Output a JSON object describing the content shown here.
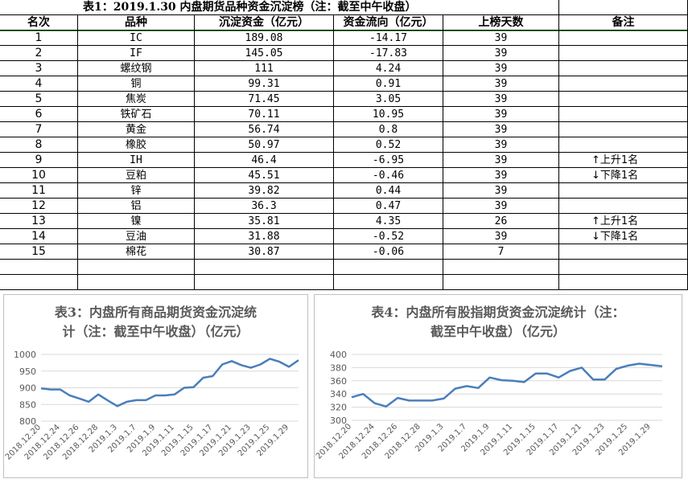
{
  "table": {
    "title": "表1：2019.1.30 内盘期货品种资金沉淀榜（注：截至中午收盘）",
    "headers": [
      "名次",
      "品种",
      "沉淀资金（亿元）",
      "资金流向（亿元）",
      "上榜天数",
      "备注"
    ],
    "rows": [
      {
        "rank": "1",
        "name": "IC",
        "capital": "189.08",
        "flow": "-14.17",
        "days": "39",
        "note": ""
      },
      {
        "rank": "2",
        "name": "IF",
        "capital": "145.05",
        "flow": "-17.83",
        "days": "39",
        "note": ""
      },
      {
        "rank": "3",
        "name": "螺纹钢",
        "capital": "111",
        "flow": "4.24",
        "days": "39",
        "note": ""
      },
      {
        "rank": "4",
        "name": "铜",
        "capital": "99.31",
        "flow": "0.91",
        "days": "39",
        "note": ""
      },
      {
        "rank": "5",
        "name": "焦炭",
        "capital": "71.45",
        "flow": "3.05",
        "days": "39",
        "note": ""
      },
      {
        "rank": "6",
        "name": "铁矿石",
        "capital": "70.11",
        "flow": "10.95",
        "days": "39",
        "note": ""
      },
      {
        "rank": "7",
        "name": "黄金",
        "capital": "56.74",
        "flow": "0.8",
        "days": "39",
        "note": ""
      },
      {
        "rank": "8",
        "name": "橡胶",
        "capital": "50.97",
        "flow": "0.52",
        "days": "39",
        "note": ""
      },
      {
        "rank": "9",
        "name": "IH",
        "capital": "46.4",
        "flow": "-6.95",
        "days": "39",
        "note": "↑上升1名"
      },
      {
        "rank": "10",
        "name": "豆粕",
        "capital": "45.51",
        "flow": "-0.46",
        "days": "39",
        "note": "↓下降1名"
      },
      {
        "rank": "11",
        "name": "锌",
        "capital": "39.82",
        "flow": "0.44",
        "days": "39",
        "note": ""
      },
      {
        "rank": "12",
        "name": "铝",
        "capital": "36.3",
        "flow": "0.47",
        "days": "39",
        "note": ""
      },
      {
        "rank": "13",
        "name": "镍",
        "capital": "35.81",
        "flow": "4.35",
        "days": "26",
        "note": "↑上升1名"
      },
      {
        "rank": "14",
        "name": "豆油",
        "capital": "31.88",
        "flow": "-0.52",
        "days": "39",
        "note": "↓下降1名"
      },
      {
        "rank": "15",
        "name": "棉花",
        "capital": "30.87",
        "flow": "-0.06",
        "days": "7",
        "note": ""
      }
    ]
  },
  "chart_data": [
    {
      "type": "line",
      "title_line1": "表3：内盘所有商品期货资金沉淀统",
      "title_line2": "计（注：截至中午收盘）（亿元）",
      "ylim": [
        800,
        1000
      ],
      "yticks": [
        800,
        850,
        900,
        950,
        1000
      ],
      "xtick_labels": [
        "2018.12.20",
        "2018.12.24",
        "2018.12.26",
        "2018.12.28",
        "2019.1.3",
        "2019.1.7",
        "2019.1.9",
        "2019.1.11",
        "2019.1.15",
        "2019.1.17",
        "2019.1.21",
        "2019.1.23",
        "2019.1.25",
        "2019.1.29"
      ],
      "values": [
        898,
        895,
        895,
        877,
        868,
        858,
        880,
        862,
        845,
        858,
        863,
        863,
        877,
        877,
        880,
        900,
        902,
        930,
        935,
        970,
        980,
        968,
        960,
        970,
        987,
        978,
        963,
        983
      ],
      "color": "#4a7ebb"
    },
    {
      "type": "line",
      "title_line1": "表4：内盘所有股指期货资金沉淀统计（注：",
      "title_line2": "截至中午收盘）（亿元）",
      "ylim": [
        300,
        400
      ],
      "yticks": [
        300,
        320,
        340,
        360,
        380,
        400
      ],
      "xtick_labels": [
        "2018.12.20",
        "2018.12.24",
        "2018.12.26",
        "2018.12.28",
        "2019.1.3",
        "2019.1.7",
        "2019.1.9",
        "2019.1.11",
        "2019.1.15",
        "2019.1.17",
        "2019.1.21",
        "2019.1.23",
        "2019.1.25",
        "2019.1.29"
      ],
      "values": [
        335,
        340,
        326,
        321,
        334,
        330,
        330,
        330,
        333,
        348,
        352,
        349,
        365,
        361,
        360,
        358,
        371,
        371,
        365,
        375,
        380,
        362,
        362,
        378,
        383,
        386,
        384,
        382
      ],
      "color": "#4a7ebb"
    }
  ]
}
